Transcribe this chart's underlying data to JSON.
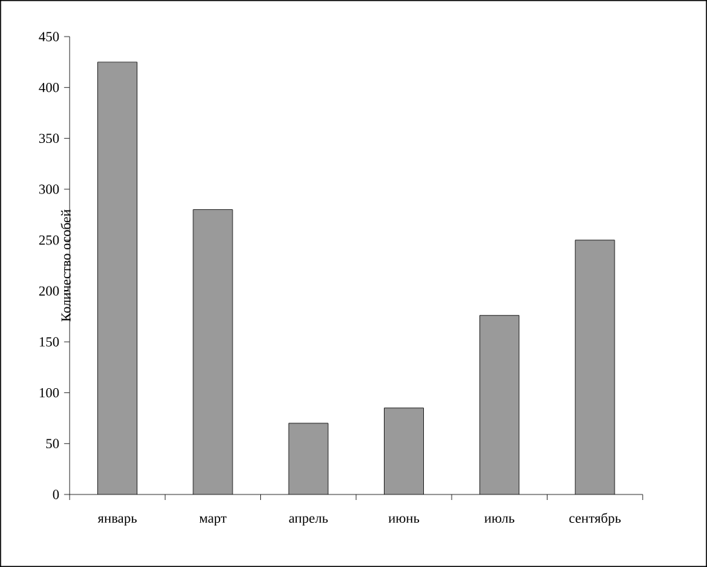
{
  "chart_data": {
    "type": "bar",
    "ylabel": "Количество особей",
    "categories": [
      "январь",
      "март",
      "апрель",
      "июнь",
      "июль",
      "сентябрь"
    ],
    "values": [
      425,
      280,
      70,
      85,
      176,
      250
    ],
    "color": "#9a9a9a",
    "ylim": [
      0,
      450
    ],
    "yticks": [
      0,
      50,
      100,
      150,
      200,
      250,
      300,
      350,
      400,
      450
    ]
  }
}
